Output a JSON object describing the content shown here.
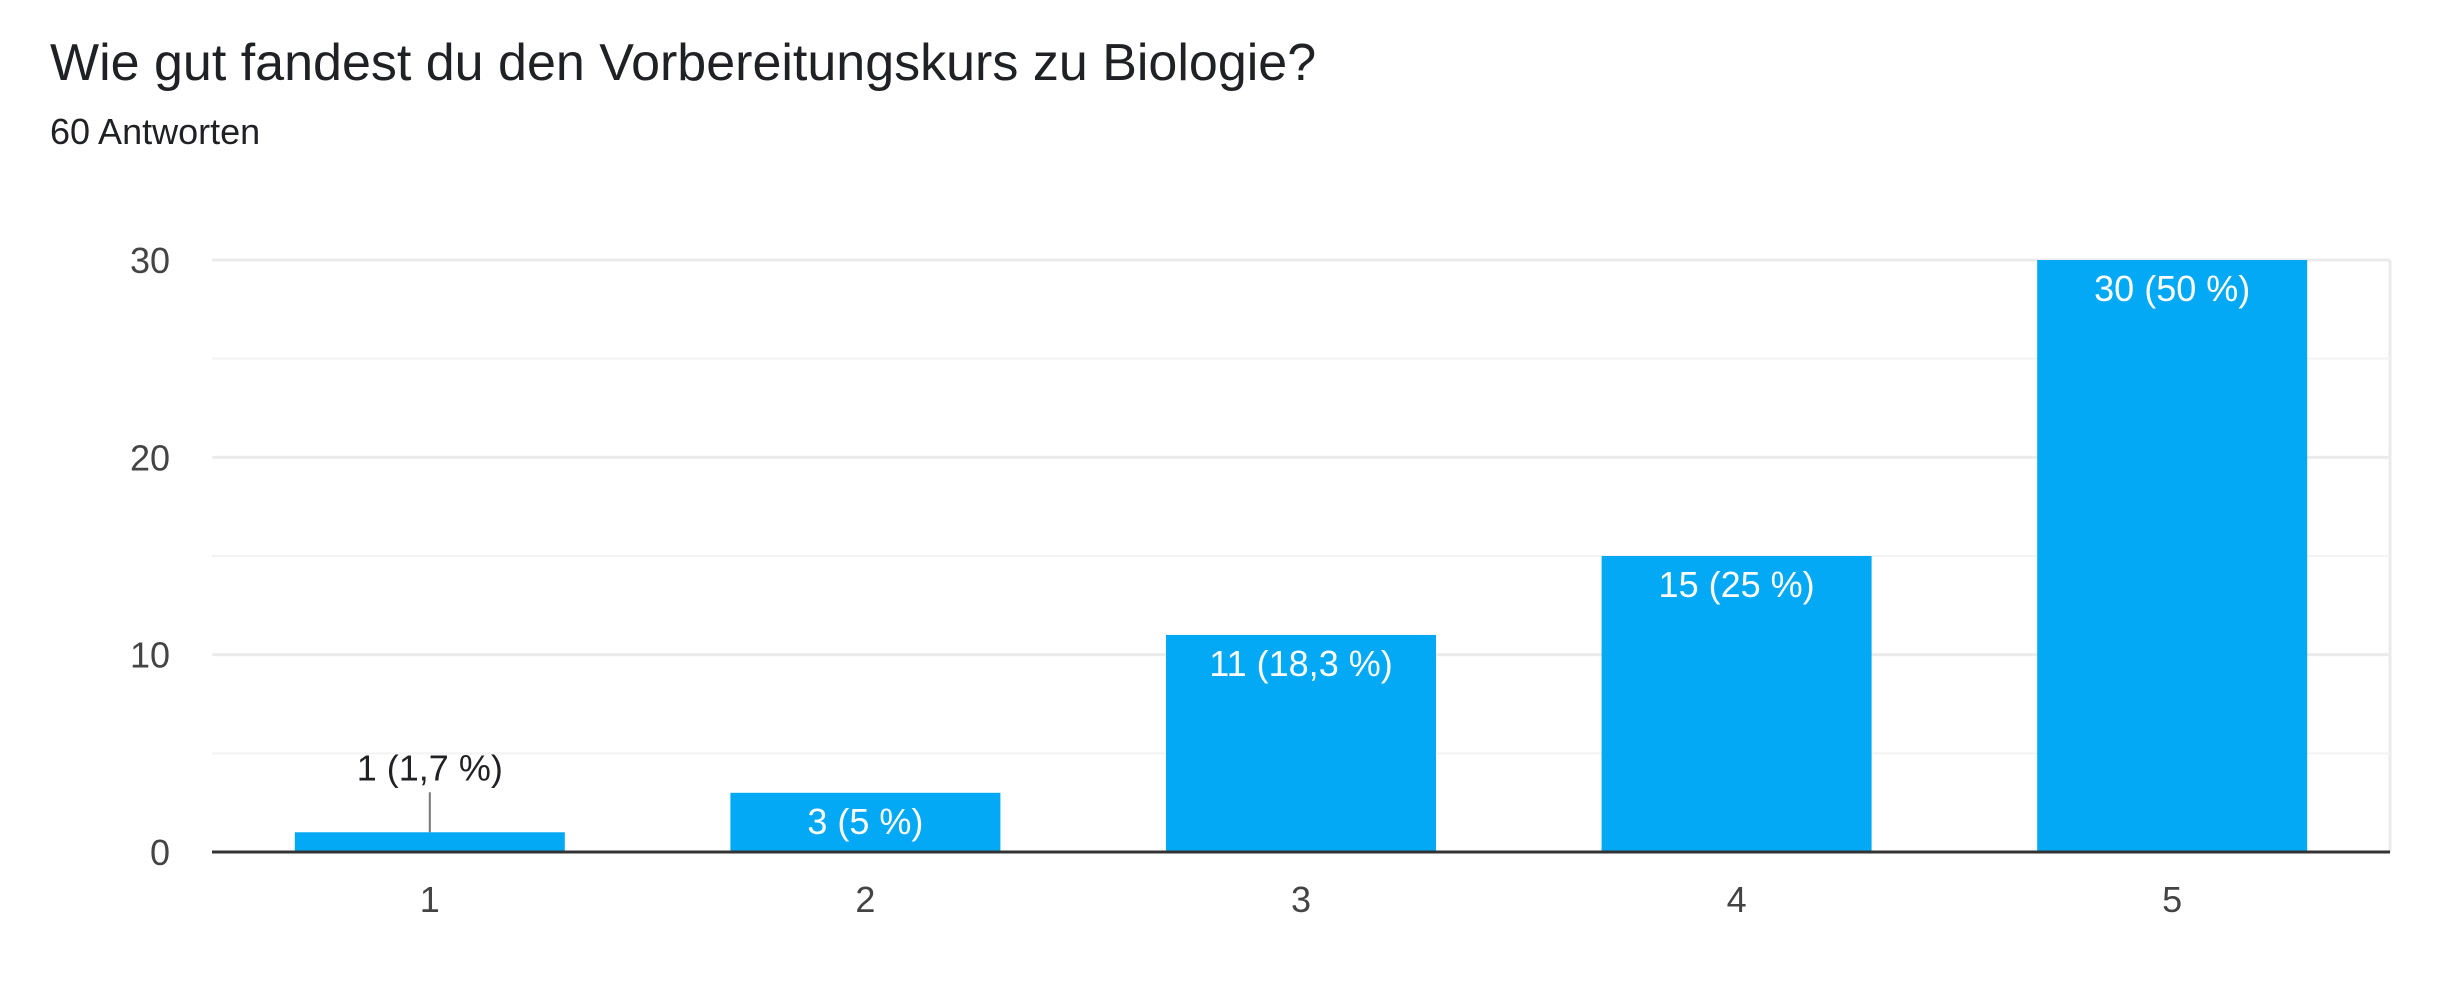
{
  "question": {
    "title": "Wie gut fandest du den Vorbereitungskurs zu Biologie?",
    "response_count": "60 Antworten"
  },
  "colors": {
    "bar": "#03a9f4",
    "grid": "#ebebeb",
    "axis": "#333333",
    "label_inside": "#ffffff",
    "label_outside": "#202124"
  },
  "chart_data": {
    "type": "bar",
    "categories": [
      "1",
      "2",
      "3",
      "4",
      "5"
    ],
    "values": [
      1,
      3,
      11,
      15,
      30
    ],
    "data_labels": [
      "1 (1,7 %)",
      "3 (5 %)",
      "11 (18,3 %)",
      "15 (25 %)",
      "30 (50 %)"
    ],
    "yticks": [
      0,
      10,
      20,
      30
    ],
    "ylim": [
      0,
      30
    ],
    "grid": true,
    "legend": "none"
  }
}
